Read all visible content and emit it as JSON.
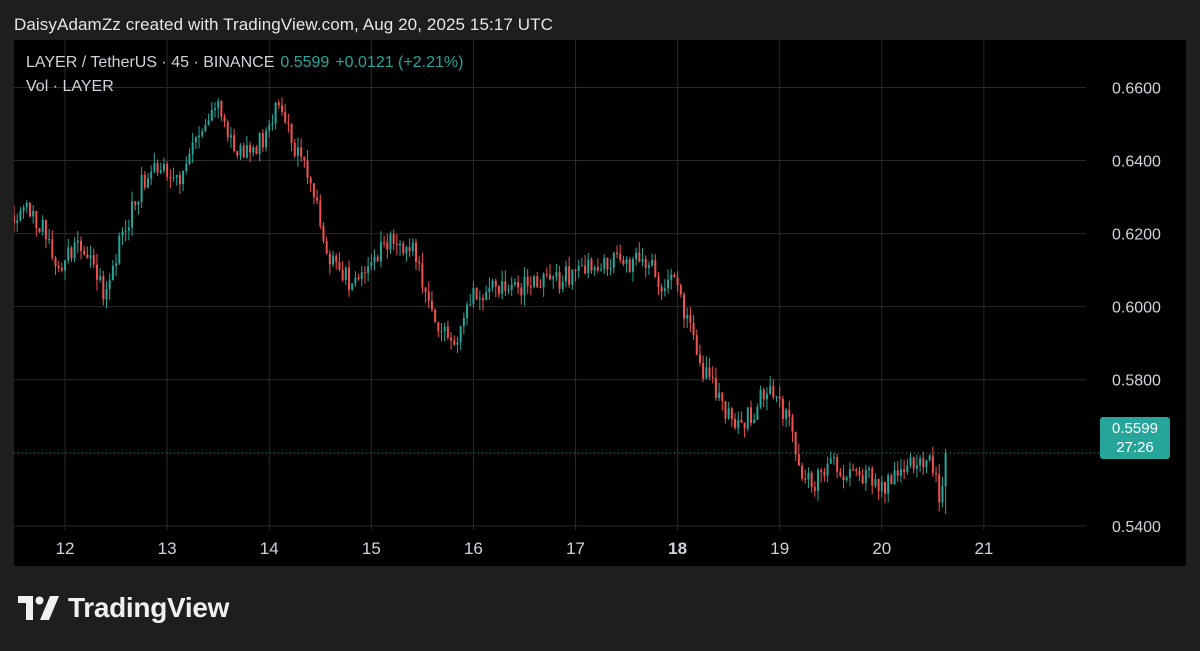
{
  "credit": "DaisyAdamZz created with TradingView.com, Aug 20, 2025 15:17 UTC",
  "legend": {
    "symbol": "LAYER / TetherUS · 45 · BINANCE",
    "price": "0.5599",
    "change": "+0.0121 (+2.21%)",
    "volume_label": "Vol · LAYER"
  },
  "price_tag": {
    "price": "0.5599",
    "countdown": "27:26"
  },
  "brand": {
    "name": "TradingView"
  },
  "colors": {
    "up": "#26a69a",
    "down": "#ef5350",
    "grid": "#2a2a2a",
    "axis_text": "#d1d4dc",
    "last_price_line": "#26a69a"
  },
  "chart_data": {
    "type": "candlestick",
    "interval": "45",
    "y_ticks": [
      "0.6600",
      "0.6400",
      "0.6200",
      "0.6000",
      "0.5800",
      "0.5400"
    ],
    "y_tick_values": [
      0.66,
      0.64,
      0.62,
      0.6,
      0.58,
      0.54
    ],
    "ylim": [
      0.529,
      0.673
    ],
    "x_ticks": [
      "12",
      "13",
      "14",
      "15",
      "16",
      "17",
      "18",
      "19",
      "20",
      "21"
    ],
    "x_tick_bold": [
      false,
      false,
      false,
      false,
      false,
      false,
      true,
      false,
      false,
      false
    ],
    "xlim": [
      11.5,
      22.0
    ],
    "last_price": 0.5599,
    "close_path": [
      [
        11.5,
        0.623
      ],
      [
        11.65,
        0.628
      ],
      [
        11.8,
        0.62
      ],
      [
        11.95,
        0.609
      ],
      [
        12.1,
        0.618
      ],
      [
        12.25,
        0.614
      ],
      [
        12.4,
        0.603
      ],
      [
        12.55,
        0.619
      ],
      [
        12.7,
        0.63
      ],
      [
        12.85,
        0.64
      ],
      [
        13.05,
        0.638
      ],
      [
        13.15,
        0.634
      ],
      [
        13.2,
        0.64
      ],
      [
        13.35,
        0.65
      ],
      [
        13.48,
        0.655
      ],
      [
        13.62,
        0.644
      ],
      [
        13.78,
        0.643
      ],
      [
        13.95,
        0.646
      ],
      [
        14.08,
        0.656
      ],
      [
        14.15,
        0.652
      ],
      [
        14.3,
        0.64
      ],
      [
        14.45,
        0.63
      ],
      [
        14.55,
        0.615
      ],
      [
        14.7,
        0.61
      ],
      [
        14.85,
        0.605
      ],
      [
        15.0,
        0.612
      ],
      [
        15.2,
        0.619
      ],
      [
        15.42,
        0.615
      ],
      [
        15.55,
        0.6
      ],
      [
        15.7,
        0.592
      ],
      [
        15.85,
        0.592
      ],
      [
        16.0,
        0.603
      ],
      [
        16.2,
        0.606
      ],
      [
        16.35,
        0.603
      ],
      [
        16.55,
        0.606
      ],
      [
        16.7,
        0.607
      ],
      [
        16.85,
        0.607
      ],
      [
        17.05,
        0.611
      ],
      [
        17.2,
        0.61
      ],
      [
        17.4,
        0.613
      ],
      [
        17.6,
        0.612
      ],
      [
        17.72,
        0.612
      ],
      [
        17.82,
        0.605
      ],
      [
        17.95,
        0.61
      ],
      [
        18.1,
        0.596
      ],
      [
        18.25,
        0.583
      ],
      [
        18.4,
        0.575
      ],
      [
        18.55,
        0.568
      ],
      [
        18.7,
        0.57
      ],
      [
        18.85,
        0.576
      ],
      [
        18.95,
        0.575
      ],
      [
        19.1,
        0.569
      ],
      [
        19.2,
        0.556
      ],
      [
        19.35,
        0.552
      ],
      [
        19.5,
        0.558
      ],
      [
        19.6,
        0.556
      ],
      [
        19.75,
        0.553
      ],
      [
        19.9,
        0.554
      ],
      [
        20.0,
        0.55
      ],
      [
        20.15,
        0.556
      ],
      [
        20.3,
        0.556
      ],
      [
        20.5,
        0.557
      ],
      [
        20.58,
        0.545
      ],
      [
        20.64,
        0.5599
      ]
    ]
  }
}
